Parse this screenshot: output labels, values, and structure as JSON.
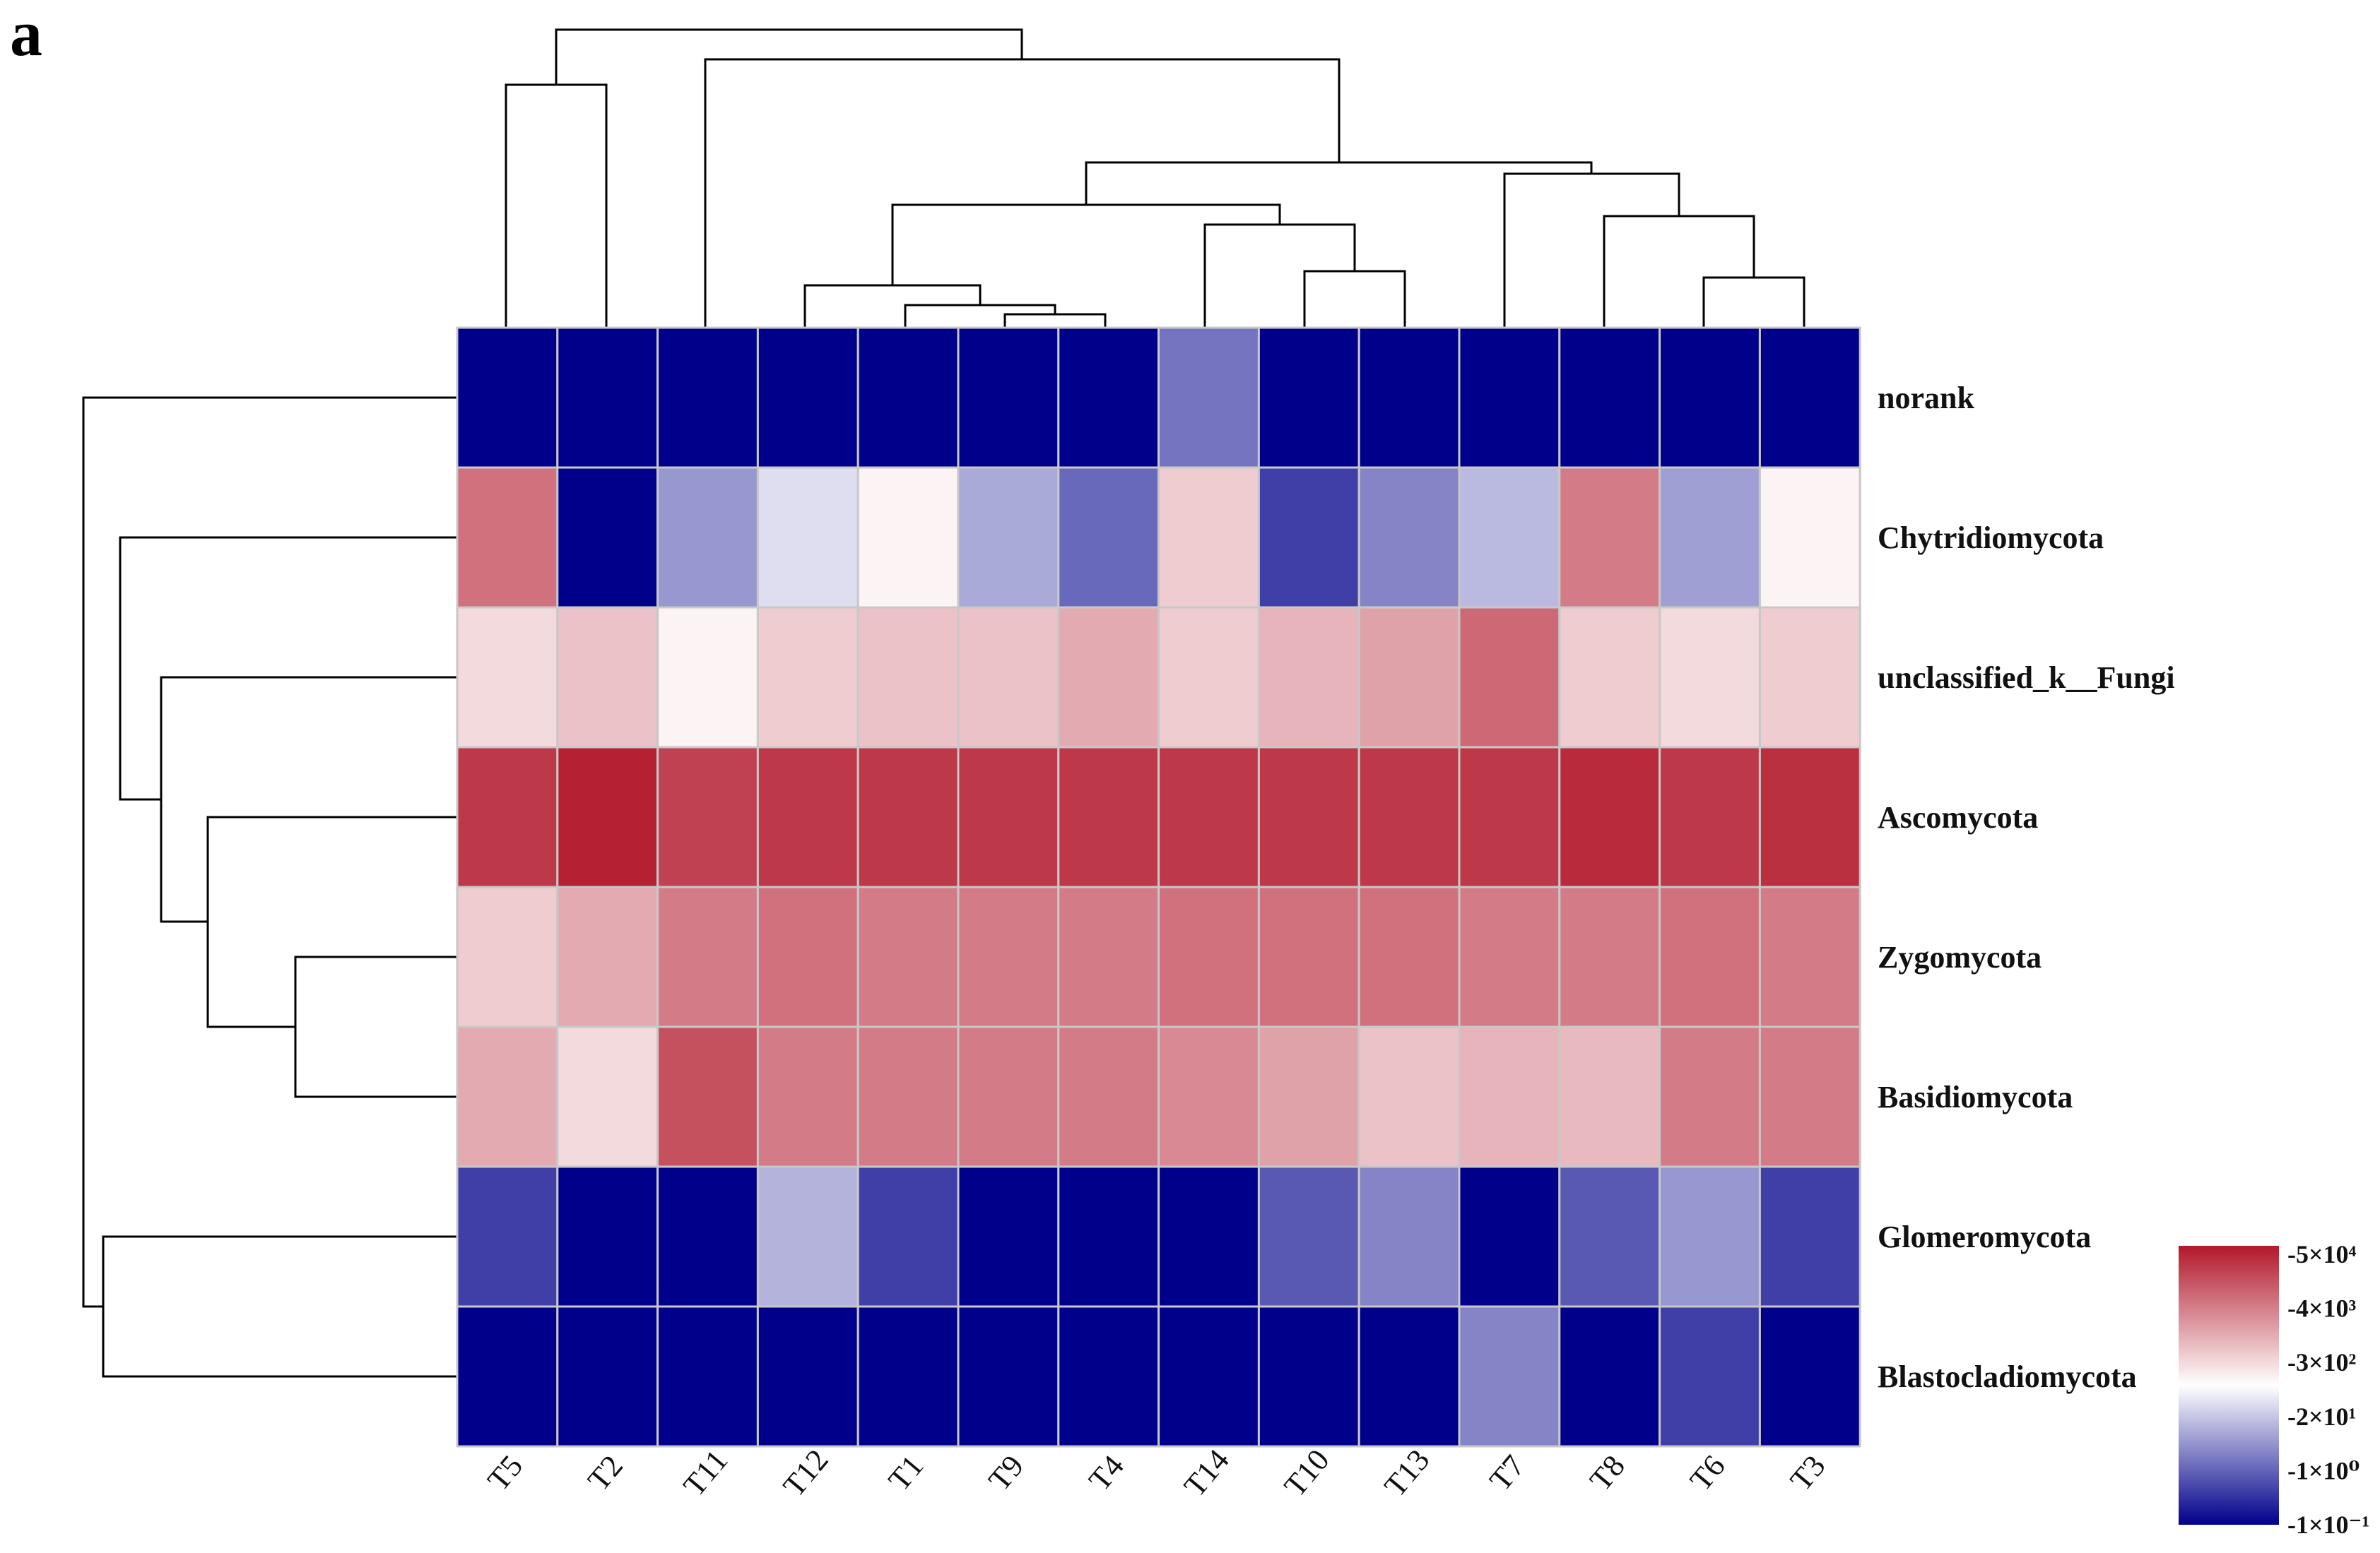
{
  "panel_label": "a",
  "chart_data": {
    "type": "heatmap",
    "columns": [
      "T5",
      "T2",
      "T11",
      "T12",
      "T1",
      "T9",
      "T4",
      "T14",
      "T10",
      "T13",
      "T7",
      "T8",
      "T6",
      "T3"
    ],
    "rows": [
      "norank",
      "Chytridiomycota",
      "unclassified_k__Fungi",
      "Ascomycota",
      "Zygomycota",
      "Basidiomycota",
      "Glomeromycota",
      "Blastocladiomycota"
    ],
    "scale": "log",
    "values": [
      [
        0.1,
        0.1,
        0.1,
        0.1,
        0.1,
        0.1,
        0.1,
        2,
        0.1,
        0.1,
        0.1,
        0.1,
        0.1,
        0.1
      ],
      [
        4000,
        0.1,
        5,
        30,
        100,
        8,
        1.5,
        300,
        0.5,
        3,
        12,
        3000,
        6,
        100
      ],
      [
        200,
        400,
        100,
        300,
        400,
        400,
        800,
        300,
        600,
        1000,
        5000,
        300,
        200,
        300
      ],
      [
        20000,
        40000,
        15000,
        20000,
        20000,
        20000,
        20000,
        20000,
        20000,
        20000,
        20000,
        30000,
        20000,
        25000
      ],
      [
        300,
        800,
        3000,
        4000,
        3000,
        3000,
        3000,
        4000,
        4000,
        4000,
        3000,
        3000,
        4000,
        3000
      ],
      [
        800,
        200,
        10000,
        3000,
        3000,
        3000,
        3000,
        2000,
        1000,
        400,
        600,
        500,
        3000,
        3000
      ],
      [
        0.5,
        0.1,
        0.1,
        10,
        0.5,
        0.1,
        0.1,
        0.1,
        1,
        3,
        0.1,
        1,
        5,
        0.5
      ],
      [
        0.1,
        0.1,
        0.1,
        0.1,
        0.1,
        0.1,
        0.1,
        0.1,
        0.1,
        0.1,
        3,
        0.1,
        0.5,
        0.1
      ]
    ],
    "legend": {
      "labels": [
        "5×10⁴",
        "4×10³",
        "3×10²",
        "2×10¹",
        "1×10⁰",
        "1×10⁻¹"
      ],
      "colors": [
        "#b2182b",
        "#ffffff",
        "#00008b"
      ],
      "placement": "bottom-right"
    }
  }
}
